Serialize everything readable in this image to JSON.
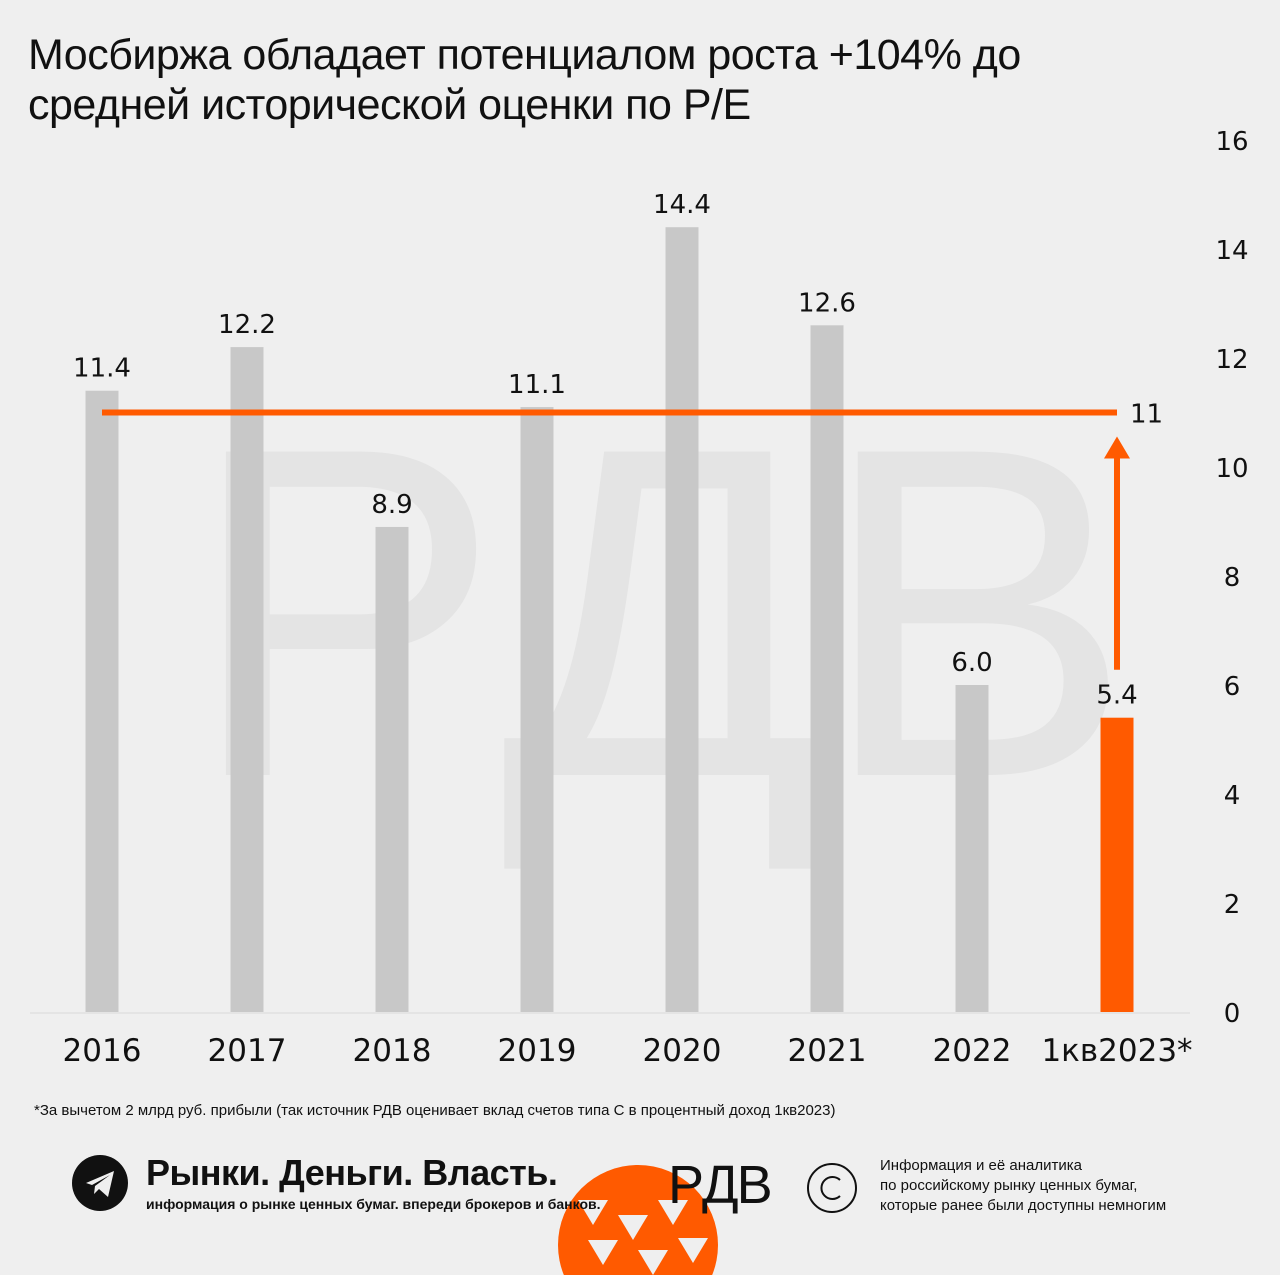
{
  "title_line1": "Мосбиржа обладает потенциалом роста +104% до",
  "title_line2": "средней исторической оценки по P/E",
  "chart_data": {
    "type": "bar",
    "categories": [
      "2016",
      "2017",
      "2018",
      "2019",
      "2020",
      "2021",
      "2022",
      "1кв2023*"
    ],
    "values": [
      11.4,
      12.2,
      8.9,
      11.1,
      14.4,
      12.6,
      6.0,
      5.4
    ],
    "value_labels": [
      "11.4",
      "12.2",
      "8.9",
      "11.1",
      "14.4",
      "12.6",
      "6.0",
      "5.4"
    ],
    "highlight_index": 7,
    "yticks": [
      "0",
      "2",
      "4",
      "6",
      "8",
      "10",
      "12",
      "14",
      "16"
    ],
    "ylim": [
      0,
      16
    ],
    "y_axis_side": "right",
    "reference_line": {
      "value": 11,
      "label": "11"
    },
    "colors": {
      "bar": "#c8c8c8",
      "highlight": "#ff5a00",
      "reference": "#ff5a00"
    }
  },
  "watermark": "PДB",
  "footnote": "*За вычетом 2 млрд руб. прибыли (так источник РДВ оценивает вклад счетов типа С в процентный доход 1кв2023)",
  "footer": {
    "brand_name": "Рынки. Деньги. Власть.",
    "brand_sub": "информация о рынке ценных бумаг. впереди брокеров и банков.",
    "logo_text": "PДB",
    "info_lines": [
      "Информация и её аналитика",
      "по российскому рынку ценных бумаг,",
      "которые ранее были доступны немногим"
    ],
    "icons": [
      "telegram-icon",
      "copyright-icon"
    ]
  }
}
